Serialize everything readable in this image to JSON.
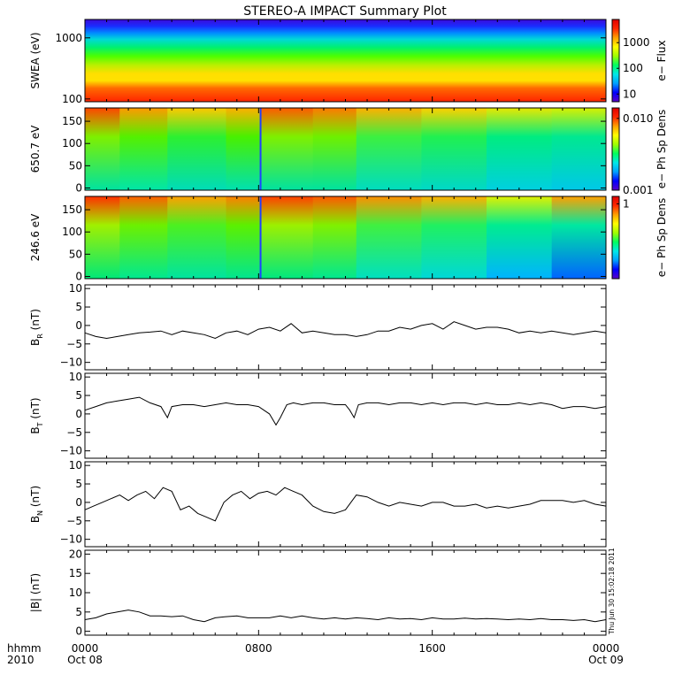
{
  "title": "STEREO-A IMPACT Summary Plot",
  "timestamp": "Thu Jun 30 15:02:18 2011",
  "corner_label": "hhmm",
  "corner_year": "2010",
  "x_axis": {
    "type": "time",
    "range_hours": [
      0,
      24
    ],
    "ticks": [
      {
        "hour": 0,
        "label": "0000",
        "sublabel": "Oct 08"
      },
      {
        "hour": 8,
        "label": "0800",
        "sublabel": ""
      },
      {
        "hour": 16,
        "label": "1600",
        "sublabel": ""
      },
      {
        "hour": 24,
        "label": "0000",
        "sublabel": "Oct 09"
      }
    ]
  },
  "colors": {
    "line": "#000000",
    "frame": "#000000"
  },
  "chart_data": [
    {
      "type": "heatmap",
      "name": "swea",
      "ylabel": "SWEA (eV)",
      "yscale": "log",
      "ylim": [
        90,
        2000
      ],
      "yticks": [
        {
          "v": 100,
          "label": "100"
        },
        {
          "v": 1000,
          "label": "1000"
        }
      ],
      "colorbar": {
        "label": "e− Flux",
        "scale": "log",
        "range": [
          5,
          8000
        ],
        "ticks": [
          {
            "v": 10,
            "label": "10"
          },
          {
            "v": 100,
            "label": "100"
          },
          {
            "v": 1000,
            "label": "1000"
          }
        ]
      },
      "bands": [
        {
          "energy": 95,
          "color": "#ff2b00"
        },
        {
          "energy": 150,
          "color": "#ff6a00"
        },
        {
          "energy": 200,
          "color": "#ffe100"
        },
        {
          "energy": 260,
          "color": "#ffdf00"
        },
        {
          "energy": 360,
          "color": "#b8f000"
        },
        {
          "energy": 500,
          "color": "#4cff00"
        },
        {
          "energy": 700,
          "color": "#00f070"
        },
        {
          "energy": 950,
          "color": "#00d8d8"
        },
        {
          "energy": 1200,
          "color": "#008cff"
        },
        {
          "energy": 1550,
          "color": "#1a2cff"
        },
        {
          "energy": 2000,
          "color": "#3c0ad8"
        }
      ]
    },
    {
      "type": "heatmap",
      "name": "pad-650",
      "ylabel": "650.7 eV",
      "ylim": [
        -5,
        180
      ],
      "yticks": [
        {
          "v": 0,
          "label": "0"
        },
        {
          "v": 50,
          "label": "50"
        },
        {
          "v": 100,
          "label": "100"
        },
        {
          "v": 150,
          "label": "150"
        }
      ],
      "colorbar": {
        "label": "e− Ph Sp Dens",
        "scale": "log",
        "range": [
          0.001,
          0.014
        ],
        "ticks": [
          {
            "v": 0.001,
            "label": "0.001"
          },
          {
            "v": 0.01,
            "label": "0.010"
          }
        ]
      },
      "gap_hours": [
        8.05,
        8.12
      ],
      "segments": [
        {
          "t0": 0,
          "t1": 1.6,
          "top": "#ff4500",
          "mid": "#7ef000",
          "low": "#00e2a0"
        },
        {
          "t0": 1.6,
          "t1": 3.8,
          "top": "#ff9a00",
          "mid": "#54f000",
          "low": "#00e6a8"
        },
        {
          "t0": 3.8,
          "t1": 6.5,
          "top": "#ffc800",
          "mid": "#2cf030",
          "low": "#00dcb8"
        },
        {
          "t0": 6.5,
          "t1": 8.05,
          "top": "#ffb000",
          "mid": "#48f000",
          "low": "#00e0b0"
        },
        {
          "t0": 8.12,
          "t1": 10.5,
          "top": "#ff5a00",
          "mid": "#7ef000",
          "low": "#00e2a0"
        },
        {
          "t0": 10.5,
          "t1": 12.5,
          "top": "#ff7a00",
          "mid": "#6ef000",
          "low": "#00e2a0"
        },
        {
          "t0": 12.5,
          "t1": 15.5,
          "top": "#ffb000",
          "mid": "#3cf040",
          "low": "#00dcc0"
        },
        {
          "t0": 15.5,
          "t1": 18.5,
          "top": "#ffd000",
          "mid": "#20f050",
          "low": "#00d8c8"
        },
        {
          "t0": 18.5,
          "t1": 21.5,
          "top": "#e8e800",
          "mid": "#00ec80",
          "low": "#00d0e0"
        },
        {
          "t0": 21.5,
          "t1": 24,
          "top": "#d8f000",
          "mid": "#00e890",
          "low": "#00c8e8"
        }
      ]
    },
    {
      "type": "heatmap",
      "name": "pad-246",
      "ylabel": "246.6 eV",
      "ylim": [
        -5,
        180
      ],
      "yticks": [
        {
          "v": 0,
          "label": "0"
        },
        {
          "v": 50,
          "label": "50"
        },
        {
          "v": 100,
          "label": "100"
        },
        {
          "v": 150,
          "label": "150"
        }
      ],
      "colorbar": {
        "label": "e− Ph Sp Dens",
        "scale": "linear",
        "range": [
          0,
          1.1
        ],
        "ticks": [
          {
            "v": 1,
            "label": "1"
          }
        ]
      },
      "gap_hours": [
        8.05,
        8.12
      ],
      "segments": [
        {
          "t0": 0,
          "t1": 1.6,
          "top": "#ff3000",
          "mid": "#a0f000",
          "low": "#00e878"
        },
        {
          "t0": 1.6,
          "t1": 3.8,
          "top": "#ff6000",
          "mid": "#6cf000",
          "low": "#00e890"
        },
        {
          "t0": 3.8,
          "t1": 6.5,
          "top": "#ffa000",
          "mid": "#4cf020",
          "low": "#00e4a0"
        },
        {
          "t0": 6.5,
          "t1": 8.05,
          "top": "#ff8000",
          "mid": "#5cf000",
          "low": "#00e690"
        },
        {
          "t0": 8.12,
          "t1": 10.5,
          "top": "#ff4000",
          "mid": "#9cf000",
          "low": "#00e880"
        },
        {
          "t0": 10.5,
          "t1": 12.5,
          "top": "#ff5800",
          "mid": "#80f000",
          "low": "#00e890"
        },
        {
          "t0": 12.5,
          "t1": 15.5,
          "top": "#ff9000",
          "mid": "#40f040",
          "low": "#00e0c0"
        },
        {
          "t0": 15.5,
          "t1": 18.5,
          "top": "#ffb000",
          "mid": "#20f060",
          "low": "#00d8d8"
        },
        {
          "t0": 18.5,
          "t1": 21.5,
          "top": "#e0f000",
          "mid": "#00ec90",
          "low": "#00b4ff"
        },
        {
          "t0": 21.5,
          "t1": 24,
          "top": "#ffa000",
          "mid": "#00e8a0",
          "low": "#0064ff"
        }
      ]
    },
    {
      "type": "line",
      "name": "br",
      "ylabel": "B",
      "ylabel_sub": "R",
      "ylabel_unit": " (nT)",
      "ylim": [
        -12,
        11
      ],
      "yticks": [
        {
          "v": -10,
          "label": "−10"
        },
        {
          "v": -5,
          "label": "−5"
        },
        {
          "v": 0,
          "label": "0"
        },
        {
          "v": 5,
          "label": "5"
        },
        {
          "v": 10,
          "label": "10"
        }
      ],
      "x": [
        0,
        0.5,
        1,
        1.5,
        2,
        2.5,
        3,
        3.5,
        4,
        4.5,
        5,
        5.5,
        6,
        6.5,
        7,
        7.5,
        8,
        8.5,
        9,
        9.5,
        10,
        10.5,
        11,
        11.5,
        12,
        12.5,
        13,
        13.5,
        14,
        14.5,
        15,
        15.5,
        16,
        16.5,
        17,
        17.5,
        18,
        18.5,
        19,
        19.5,
        20,
        20.5,
        21,
        21.5,
        22,
        22.5,
        23,
        23.5,
        24
      ],
      "y": [
        -2,
        -3,
        -3.5,
        -3,
        -2.5,
        -2,
        -1.8,
        -1.5,
        -2.5,
        -1.5,
        -2,
        -2.5,
        -3.5,
        -2,
        -1.5,
        -2.5,
        -1,
        -0.5,
        -1.5,
        0.5,
        -2,
        -1.5,
        -2,
        -2.5,
        -2.5,
        -3,
        -2.5,
        -1.5,
        -1.5,
        -0.5,
        -1,
        0,
        0.5,
        -1,
        1,
        0,
        -1,
        -0.5,
        -0.5,
        -1,
        -2,
        -1.5,
        -2,
        -1.5,
        -2,
        -2.5,
        -2,
        -1.5,
        -2
      ]
    },
    {
      "type": "line",
      "name": "bt",
      "ylabel": "B",
      "ylabel_sub": "T",
      "ylabel_unit": " (nT)",
      "ylim": [
        -12,
        11
      ],
      "yticks": [
        {
          "v": -10,
          "label": "−10"
        },
        {
          "v": -5,
          "label": "−5"
        },
        {
          "v": 0,
          "label": "0"
        },
        {
          "v": 5,
          "label": "5"
        },
        {
          "v": 10,
          "label": "10"
        }
      ],
      "x": [
        0,
        0.5,
        1,
        1.5,
        2,
        2.5,
        3,
        3.5,
        3.8,
        4,
        4.5,
        5,
        5.5,
        6,
        6.5,
        7,
        7.5,
        8,
        8.5,
        8.8,
        9,
        9.3,
        9.6,
        10,
        10.5,
        11,
        11.5,
        12,
        12.2,
        12.4,
        12.6,
        13,
        13.5,
        14,
        14.5,
        15,
        15.5,
        16,
        16.5,
        17,
        17.5,
        18,
        18.5,
        19,
        19.5,
        20,
        20.5,
        21,
        21.5,
        22,
        22.5,
        23,
        23.5,
        24
      ],
      "y": [
        1,
        2,
        3,
        3.5,
        4,
        4.5,
        3,
        2,
        -1,
        2,
        2.5,
        2.5,
        2,
        2.5,
        3,
        2.5,
        2.5,
        2,
        0,
        -3,
        -1,
        2.5,
        3,
        2.5,
        3,
        3,
        2.5,
        2.5,
        1,
        -1,
        2.5,
        3,
        3,
        2.5,
        3,
        3,
        2.5,
        3,
        2.5,
        3,
        3,
        2.5,
        3,
        2.5,
        2.5,
        3,
        2.5,
        3,
        2.5,
        1.5,
        2,
        2,
        1.5,
        2
      ]
    },
    {
      "type": "line",
      "name": "bn",
      "ylabel": "B",
      "ylabel_sub": "N",
      "ylabel_unit": " (nT)",
      "ylim": [
        -12,
        11
      ],
      "yticks": [
        {
          "v": -10,
          "label": "−10"
        },
        {
          "v": -5,
          "label": "−5"
        },
        {
          "v": 0,
          "label": "0"
        },
        {
          "v": 5,
          "label": "5"
        },
        {
          "v": 10,
          "label": "10"
        }
      ],
      "x": [
        0,
        0.4,
        0.8,
        1.2,
        1.6,
        2,
        2.4,
        2.8,
        3.2,
        3.6,
        4,
        4.4,
        4.8,
        5.2,
        5.6,
        6,
        6.4,
        6.8,
        7.2,
        7.6,
        8,
        8.4,
        8.8,
        9.2,
        9.6,
        10,
        10.5,
        11,
        11.5,
        12,
        12.5,
        13,
        13.5,
        14,
        14.5,
        15,
        15.5,
        16,
        16.5,
        17,
        17.5,
        18,
        18.5,
        19,
        19.5,
        20,
        20.5,
        21,
        21.5,
        22,
        22.5,
        23,
        23.5,
        24
      ],
      "y": [
        -2,
        -1,
        0,
        1,
        2,
        0.5,
        2,
        3,
        1,
        4,
        3,
        -2,
        -1,
        -3,
        -4,
        -5,
        0,
        2,
        3,
        1,
        2.5,
        3,
        2,
        4,
        3,
        2,
        -1,
        -2.5,
        -3,
        -2,
        2,
        1.5,
        0,
        -1,
        0,
        -0.5,
        -1,
        0,
        0,
        -1,
        -1,
        -0.5,
        -1.5,
        -1,
        -1.5,
        -1,
        -0.5,
        0.5,
        0.5,
        0.5,
        0,
        0.5,
        -0.5,
        -1
      ]
    },
    {
      "type": "line",
      "name": "bmag",
      "ylabel": "|B| (nT)",
      "ylim": [
        -1,
        21
      ],
      "yticks": [
        {
          "v": 0,
          "label": "0"
        },
        {
          "v": 5,
          "label": "5"
        },
        {
          "v": 10,
          "label": "10"
        },
        {
          "v": 15,
          "label": "15"
        },
        {
          "v": 20,
          "label": "20"
        }
      ],
      "x": [
        0,
        0.5,
        1,
        1.5,
        2,
        2.5,
        3,
        3.5,
        4,
        4.5,
        5,
        5.5,
        6,
        6.5,
        7,
        7.5,
        8,
        8.5,
        9,
        9.5,
        10,
        10.5,
        11,
        11.5,
        12,
        12.5,
        13,
        13.5,
        14,
        14.5,
        15,
        15.5,
        16,
        16.5,
        17,
        17.5,
        18,
        18.5,
        19,
        19.5,
        20,
        20.5,
        21,
        21.5,
        22,
        22.5,
        23,
        23.5,
        24
      ],
      "y": [
        3,
        3.5,
        4.5,
        5,
        5.5,
        5,
        4,
        4,
        3.8,
        4,
        3,
        2.5,
        3.5,
        3.8,
        4,
        3.5,
        3.5,
        3.5,
        4,
        3.5,
        4,
        3.5,
        3.2,
        3.5,
        3.2,
        3.5,
        3.3,
        3,
        3.5,
        3.2,
        3.3,
        3,
        3.5,
        3.2,
        3.2,
        3.4,
        3.2,
        3.3,
        3.2,
        3,
        3.2,
        3,
        3.3,
        3,
        3,
        2.8,
        3,
        2.5,
        3
      ]
    }
  ]
}
